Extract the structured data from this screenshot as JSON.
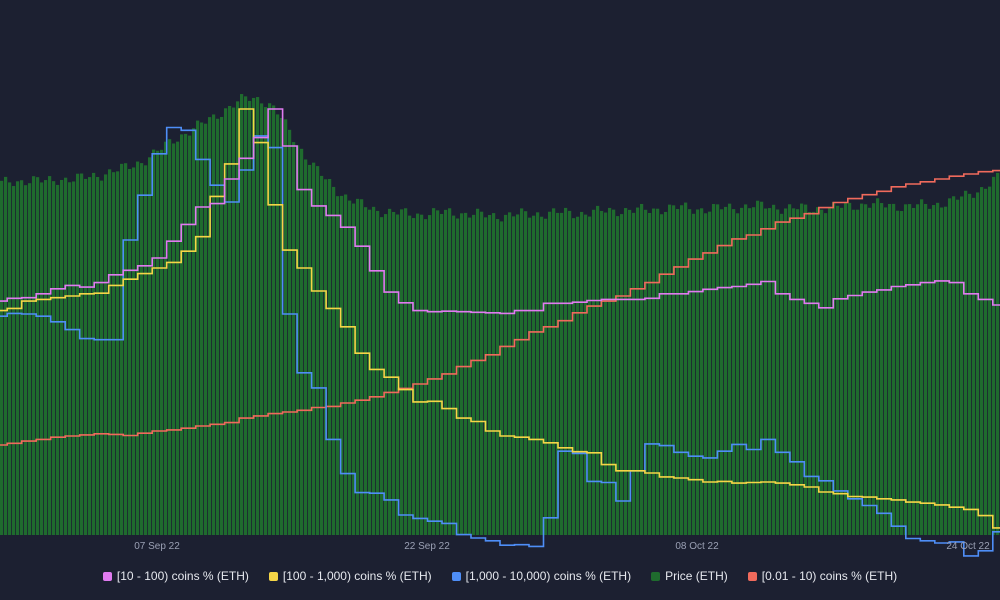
{
  "chart_data": {
    "type": "line",
    "title": "",
    "x_ticks": [
      "07 Sep 22",
      "22 Sep 22",
      "08 Oct 22",
      "24 Oct 22"
    ],
    "grid": false,
    "legend_position": "bottom",
    "series": [
      {
        "name": "[10 - 100) coins % (ETH)",
        "color": "#e07bf0",
        "type": "line",
        "values": [
          0.7,
          1.2,
          1.3,
          2.0,
          2.9,
          3.5,
          3.2,
          4.0,
          5.4,
          6.2,
          7.0,
          8.4,
          11.4,
          14.4,
          17.5,
          18.1,
          22.5,
          26.2,
          29.9,
          35.0,
          28.4,
          20.6,
          17.7,
          16.0,
          13.9,
          10.5,
          6.1,
          2.3,
          0.4,
          -1.0,
          -1.2,
          -1.1,
          -1.2,
          -1.3,
          -1.4,
          -1.5,
          -1.0,
          -1.0,
          0.3,
          0.3,
          0.5,
          0.8,
          1.0,
          1.0,
          1.0,
          1.2,
          2.0,
          2.0,
          2.4,
          2.8,
          3.1,
          3.3,
          3.7,
          4.2,
          2.0,
          1.0,
          0.3,
          -0.5,
          1.1,
          1.7,
          2.3,
          2.7,
          3.3,
          3.6,
          4.0,
          4.3,
          4.0,
          2.0,
          1.0,
          0.0
        ]
      },
      {
        "name": "[100 - 1,000) coins % (ETH)",
        "color": "#f5d547",
        "type": "line",
        "values": [
          -1.0,
          -0.6,
          0.7,
          1.0,
          1.3,
          1.6,
          2.0,
          2.1,
          3.5,
          4.6,
          5.6,
          6.6,
          7.6,
          9.6,
          12.2,
          19.4,
          25.2,
          35.0,
          29.0,
          17.9,
          9.8,
          6.6,
          2.5,
          -0.6,
          -3.9,
          -8.6,
          -11.5,
          -12.9,
          -15.1,
          -17.3,
          -17.2,
          -18.5,
          -20.2,
          -20.8,
          -22.5,
          -23.4,
          -23.6,
          -24.0,
          -24.6,
          -25.5,
          -26.2,
          -26.4,
          -28.5,
          -29.6,
          -29.6,
          -30.0,
          -30.7,
          -30.9,
          -31.2,
          -31.6,
          -31.5,
          -31.8,
          -31.7,
          -31.6,
          -31.8,
          -32.1,
          -32.5,
          -33.4,
          -33.7,
          -34.2,
          -34.3,
          -34.6,
          -34.8,
          -35.2,
          -35.4,
          -35.7,
          -36.1,
          -36.5,
          -37.6,
          -39.8
        ]
      },
      {
        "name": "[1,000 - 10,000) coins % (ETH)",
        "color": "#4e8ef7",
        "type": "line",
        "values": [
          -2.0,
          -1.5,
          -1.6,
          -2.0,
          -3.0,
          -4.4,
          -6.0,
          -6.2,
          -6.2,
          11.6,
          19.6,
          27.0,
          31.7,
          31.2,
          26.0,
          21.4,
          18.4,
          24.1,
          30.2,
          28.1,
          -1.6,
          -12.1,
          -14.8,
          -24.0,
          -30.1,
          -33.5,
          -33.6,
          -34.8,
          -37.5,
          -38.1,
          -38.6,
          -39.0,
          -41.0,
          -41.6,
          -42.1,
          -42.9,
          -42.8,
          -43.1,
          -38.0,
          -26.1,
          -26.5,
          -31.5,
          -31.7,
          -35.0,
          -29.6,
          -24.8,
          -25.1,
          -26.3,
          -27.0,
          -27.3,
          -26.1,
          -24.9,
          -25.8,
          -24.0,
          -26.3,
          -28.0,
          -30.6,
          -31.4,
          -33.2,
          -34.6,
          -35.8,
          -37.2,
          -39.5,
          -41.7,
          -42.1,
          -42.5,
          -42.3,
          -44.8,
          -43.9,
          -40.5
        ]
      },
      {
        "name": "Price (ETH)",
        "color": "#1f6b2e",
        "type": "bar",
        "values": [
          12.0,
          12.5,
          12.8,
          12.4,
          13.1,
          12.9,
          13.5,
          14.2,
          15.0,
          16.1,
          17.6,
          19.8,
          22.4,
          24.1,
          26.0,
          28.2,
          30.1,
          32.0,
          31.7,
          28.9,
          24.0,
          18.6,
          14.4,
          11.2,
          8.5,
          6.9,
          5.8,
          5.2,
          5.0,
          4.8,
          5.1,
          5.3,
          5.0,
          4.7,
          4.5,
          4.6,
          4.8,
          4.9,
          5.1,
          5.2,
          5.0,
          5.3,
          5.6,
          5.8,
          5.7,
          5.9,
          6.2,
          6.4,
          6.1,
          6.0,
          6.3,
          6.5,
          6.8,
          6.6,
          6.4,
          6.2,
          6.1,
          6.3,
          6.5,
          6.9,
          7.2,
          7.0,
          6.8,
          6.7,
          6.9,
          7.3,
          8.1,
          9.4,
          11.0,
          13.2
        ]
      },
      {
        "name": "[0.01 - 10) coins % (ETH)",
        "color": "#f06a5c",
        "type": "line",
        "values": [
          -25.0,
          -24.7,
          -24.3,
          -24.0,
          -23.6,
          -23.4,
          -23.2,
          -23.0,
          -23.1,
          -23.3,
          -22.9,
          -22.5,
          -22.3,
          -22.0,
          -21.6,
          -21.3,
          -21.0,
          -20.2,
          -19.8,
          -19.4,
          -19.1,
          -18.8,
          -18.3,
          -18.1,
          -17.5,
          -17.0,
          -16.4,
          -15.6,
          -14.9,
          -14.1,
          -13.2,
          -12.3,
          -11.0,
          -9.9,
          -8.9,
          -7.4,
          -6.2,
          -4.8,
          -3.9,
          -2.8,
          -1.4,
          -0.2,
          0.7,
          1.6,
          2.9,
          4.0,
          5.5,
          6.8,
          8.2,
          9.3,
          10.6,
          11.8,
          12.5,
          13.6,
          14.8,
          15.5,
          16.3,
          17.4,
          18.3,
          19.0,
          19.7,
          20.3,
          21.1,
          21.6,
          22.0,
          22.5,
          23.0,
          23.4,
          23.8,
          24.0
        ]
      }
    ]
  },
  "legend": {
    "items": [
      {
        "label": "[10 - 100) coins % (ETH)",
        "color": "#e07bf0"
      },
      {
        "label": "[100 - 1,000) coins % (ETH)",
        "color": "#f5d547"
      },
      {
        "label": "[1,000 - 10,000) coins % (ETH)",
        "color": "#4e8ef7"
      },
      {
        "label": "Price (ETH)",
        "color": "#1f6b2e"
      },
      {
        "label": "[0.01 - 10) coins % (ETH)",
        "color": "#f06a5c"
      }
    ]
  }
}
